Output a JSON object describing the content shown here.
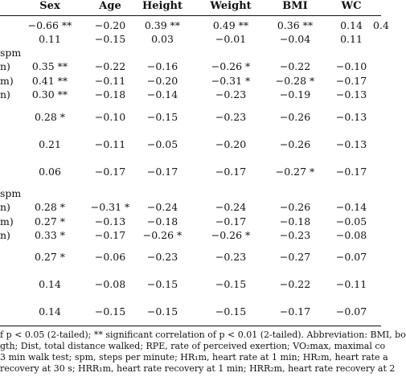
{
  "table": {
    "columns": [
      "Sex",
      "Age",
      "Height",
      "Weight",
      "BMI",
      "WC"
    ],
    "edge_header": "",
    "rows": [
      {
        "label": "",
        "values": [
          "−0.66 **",
          "−0.20",
          "0.39 **",
          "0.49 **",
          "0.36 **",
          "0.14"
        ],
        "edge": "0.4"
      },
      {
        "label": "",
        "values": [
          "0.11",
          "−0.15",
          "0.03",
          "−0.01",
          "−0.04",
          "0.11"
        ],
        "edge": ""
      },
      {
        "label": "spm",
        "values": [
          "",
          "",
          "",
          "",
          "",
          ""
        ],
        "edge": ""
      },
      {
        "label": "n)",
        "values": [
          "0.35 **",
          "−0.22",
          "−0.16",
          "−0.26 *",
          "−0.22",
          "−0.10"
        ],
        "edge": ""
      },
      {
        "label": "m)",
        "values": [
          "0.41 **",
          "−0.11",
          "−0.20",
          "−0.31 *",
          "−0.28 *",
          "−0.17"
        ],
        "edge": ""
      },
      {
        "label": "n)",
        "values": [
          "0.30 **",
          "−0.18",
          "−0.14",
          "−0.23",
          "−0.19",
          "−0.13"
        ],
        "edge": ""
      },
      {
        "label": "",
        "values": [
          "0.28 *",
          "−0.10",
          "−0.15",
          "−0.23",
          "−0.26",
          "−0.13"
        ],
        "edge": ""
      },
      {
        "label": "",
        "values": [
          "0.21",
          "−0.11",
          "−0.05",
          "−0.20",
          "−0.26",
          "−0.13"
        ],
        "edge": ""
      },
      {
        "label": "",
        "values": [
          "0.06",
          "−0.17",
          "−0.17",
          "−0.17",
          "−0.27 *",
          "−0.17"
        ],
        "edge": ""
      },
      {
        "label": "spm",
        "values": [
          "",
          "",
          "",
          "",
          "",
          ""
        ],
        "edge": ""
      },
      {
        "label": "n)",
        "values": [
          "0.28 *",
          "−0.31 *",
          "−0.24",
          "−0.24",
          "−0.26",
          "−0.14"
        ],
        "edge": ""
      },
      {
        "label": "m)",
        "values": [
          "0.27 *",
          "−0.13",
          "−0.18",
          "−0.17",
          "−0.18",
          "−0.05"
        ],
        "edge": ""
      },
      {
        "label": "n)",
        "values": [
          "0.33 *",
          "−0.17",
          "−0.26 *",
          "−0.26 *",
          "−0.23",
          "−0.08"
        ],
        "edge": ""
      },
      {
        "label": "",
        "values": [
          "0.27 *",
          "−0.06",
          "−0.23",
          "−0.23",
          "−0.27",
          "−0.07"
        ],
        "edge": ""
      },
      {
        "label": "",
        "values": [
          "0.14",
          "−0.08",
          "−0.15",
          "−0.15",
          "−0.22",
          "−0.11"
        ],
        "edge": ""
      },
      {
        "label": "",
        "values": [
          "0.14",
          "−0.15",
          "−0.15",
          "−0.15",
          "−0.17",
          "−0.07"
        ],
        "edge": ""
      }
    ]
  },
  "footnote": {
    "line1": "f p < 0.05 (2-tailed); ** significant correlation of p < 0.01 (2-tailed). Abbreviation: BMI, bo",
    "line2": "gth; Dist, total distance walked; RPE, rate of perceived exertion; VO₂max, maximal co",
    "line3": "3 min walk test; spm, steps per minute; HR₁m, heart rate at 1 min; HR₂m, heart rate a",
    "line4": "recovery at 30 s; HRR₁m, heart rate recovery at 1 min; HRR₂m, heart rate recovery at 2"
  }
}
